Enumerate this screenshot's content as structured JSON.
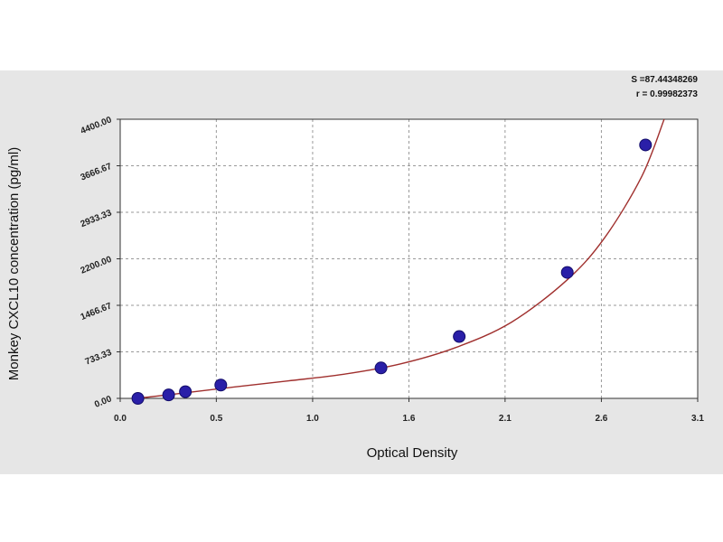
{
  "chart_data": {
    "type": "scatter",
    "xlabel": "Optical Density",
    "ylabel": "Monkey CXCL10 concentration (pg/ml)",
    "xlim": [
      0.0,
      3.1
    ],
    "ylim": [
      0.0,
      4400.0
    ],
    "xticks": [
      "0.0",
      "0.5",
      "1.0",
      "1.6",
      "2.1",
      "2.6",
      "3.1"
    ],
    "xtick_values": [
      0.0,
      0.516,
      1.033,
      1.55,
      2.066,
      2.583,
      3.1
    ],
    "yticks": [
      "0.00",
      "733.33",
      "1466.67",
      "2200.00",
      "2933.33",
      "3666.67",
      "4400.00"
    ],
    "ytick_values": [
      0,
      733.33,
      1466.67,
      2200.0,
      2933.33,
      3666.67,
      4400.0
    ],
    "grid": true,
    "points": [
      {
        "x": 0.095,
        "y": 0
      },
      {
        "x": 0.26,
        "y": 55
      },
      {
        "x": 0.35,
        "y": 105
      },
      {
        "x": 0.54,
        "y": 210
      },
      {
        "x": 1.4,
        "y": 480
      },
      {
        "x": 1.82,
        "y": 975
      },
      {
        "x": 2.4,
        "y": 1985
      },
      {
        "x": 2.82,
        "y": 3995
      }
    ],
    "fit_curve": [
      {
        "x": 0.09,
        "y": 0
      },
      {
        "x": 0.3,
        "y": 70
      },
      {
        "x": 0.6,
        "y": 175
      },
      {
        "x": 0.9,
        "y": 275
      },
      {
        "x": 1.2,
        "y": 380
      },
      {
        "x": 1.5,
        "y": 540
      },
      {
        "x": 1.8,
        "y": 800
      },
      {
        "x": 2.1,
        "y": 1200
      },
      {
        "x": 2.4,
        "y": 1870
      },
      {
        "x": 2.6,
        "y": 2530
      },
      {
        "x": 2.8,
        "y": 3500
      },
      {
        "x": 2.92,
        "y": 4400
      }
    ],
    "stats": {
      "s_label": "S =87.44348269",
      "r_label": "r = 0.99982373"
    },
    "colors": {
      "panel_bg": "#e6e6e6",
      "plot_bg": "#ffffff",
      "curve": "#a0302e",
      "point": "#2a1fa8",
      "grid": "#9a9a9a"
    }
  }
}
